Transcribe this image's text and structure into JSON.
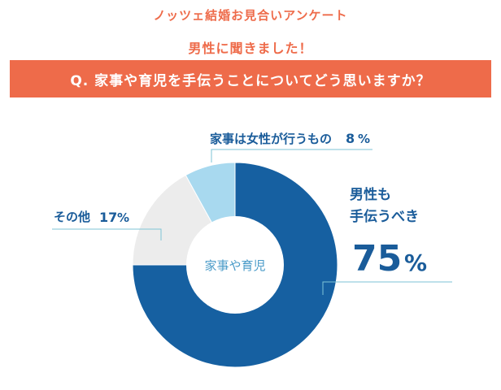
{
  "header": {
    "survey_title": "ノッツェ結婚お見合いアンケート",
    "respondents": "男性に聞きました！",
    "question": "Q. 家事や育児を手伝うことについてどう思いますか？"
  },
  "chart_data": {
    "type": "pie",
    "donut": true,
    "center_label": "家事や育児",
    "slices": [
      {
        "label_lines": [
          "男性も",
          "手伝うべき"
        ],
        "value": 75,
        "value_text": "75",
        "unit": "%",
        "color": "#1660a1"
      },
      {
        "label_lines": [
          "その他"
        ],
        "value": 17,
        "value_text": "17",
        "unit": "%",
        "color": "#ececec"
      },
      {
        "label_lines": [
          "家事は女性が行うもの"
        ],
        "value": 8,
        "value_text": "8",
        "unit": "%",
        "color": "#a8d9ef"
      }
    ],
    "colors": {
      "label_text": "#1a5c9a",
      "center_text": "#4a9bc8",
      "leader": "#7ec3d6"
    }
  }
}
